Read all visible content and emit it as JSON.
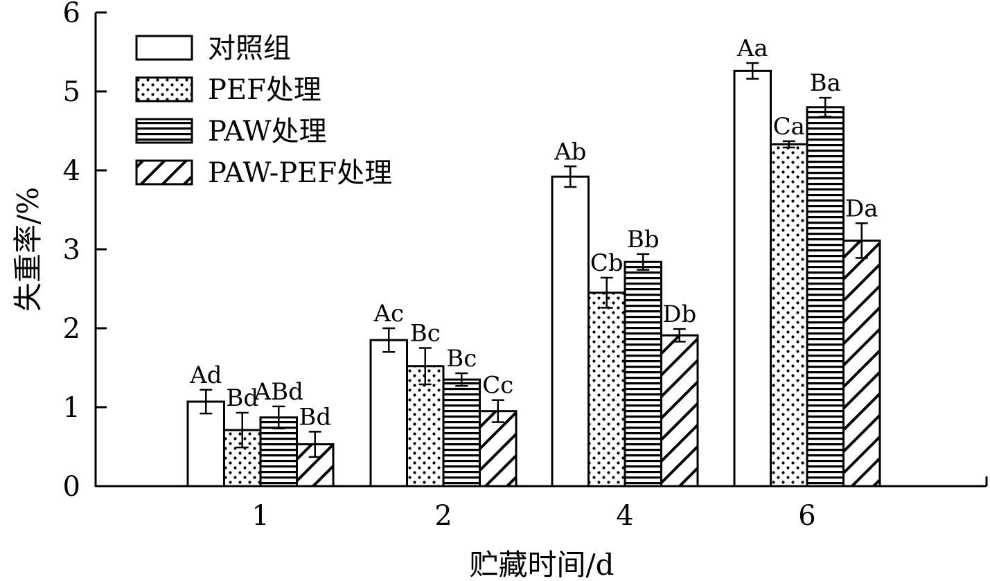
{
  "chart_data": {
    "type": "bar",
    "title": "",
    "xlabel": "贮藏时间/d",
    "ylabel": "失重率/%",
    "ylim": [
      0,
      6
    ],
    "yticks": [
      0,
      1,
      2,
      3,
      4,
      5,
      6
    ],
    "categories": [
      "1",
      "2",
      "4",
      "6"
    ],
    "grid": false,
    "legend_position": "top-left",
    "series": [
      {
        "name": "对照组",
        "pattern": "none",
        "values": [
          1.07,
          1.85,
          3.92,
          5.26
        ],
        "errors": [
          0.15,
          0.15,
          0.13,
          0.1
        ],
        "labels": [
          "Ad",
          "Ac",
          "Ab",
          "Aa"
        ]
      },
      {
        "name": "PEF处理",
        "pattern": "dots",
        "values": [
          0.71,
          1.52,
          2.45,
          4.33
        ],
        "errors": [
          0.22,
          0.23,
          0.19,
          0.04
        ],
        "labels": [
          "Bd",
          "Bc",
          "Cb",
          "Ca"
        ]
      },
      {
        "name": "PAW处理",
        "pattern": "horizontal-lines",
        "values": [
          0.87,
          1.35,
          2.84,
          4.8
        ],
        "errors": [
          0.14,
          0.08,
          0.1,
          0.12
        ],
        "labels": [
          "ABd",
          "Bc",
          "Bb",
          "Ba"
        ]
      },
      {
        "name": "PAW-PEF处理",
        "pattern": "diagonal-lines",
        "values": [
          0.53,
          0.95,
          1.91,
          3.11
        ],
        "errors": [
          0.16,
          0.14,
          0.08,
          0.22
        ],
        "labels": [
          "Bd",
          "Cc",
          "Db",
          "Da"
        ]
      }
    ]
  }
}
